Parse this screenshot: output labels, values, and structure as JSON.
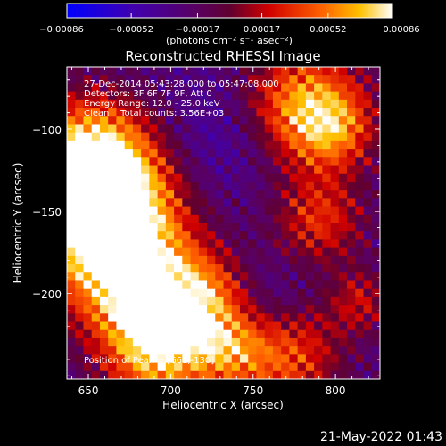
{
  "chart_data": {
    "type": "heatmap",
    "title": "Reconstructed RHESSI Image",
    "xlabel": "Heliocentric X (arcsec)",
    "ylabel": "Heliocentric Y (arcsec)",
    "xlim": [
      637,
      827
    ],
    "ylim": [
      -252,
      -62
    ],
    "x_ticks": [
      650,
      700,
      750,
      800
    ],
    "y_ticks": [
      -100,
      -150,
      -200
    ],
    "x_tick_labels": [
      "650",
      "700",
      "750",
      "800"
    ],
    "y_tick_labels": [
      "−100",
      "−150",
      "−200"
    ],
    "colorbar": {
      "range": [
        -0.00086,
        0.00086
      ],
      "ticks": [
        -0.00086,
        -0.00052,
        -0.00017,
        0.00017,
        0.00052,
        0.00086
      ],
      "tick_labels": [
        "−0.00086",
        "−0.00052",
        "−0.00017",
        "0.00017",
        "0.00052",
        "0.00086"
      ],
      "unit_label": "(photons cm⁻² s⁻¹ asec⁻²)"
    },
    "annotations": [
      "27-Dec-2014 05:43:28.000 to 05:47:08.000",
      "Detectors: 3F 6F 7F 9F, Att 0",
      "Energy Range: 12.0 - 25.0 keV",
      "Clean    Total counts: 3.56E+03"
    ],
    "peak_label": "Position of Peak = [661,-130]",
    "peak_position": [
      661,
      -130
    ],
    "grid": false,
    "colormap": [
      "#0000ff",
      "#4000b0",
      "#500070",
      "#600040",
      "#d00000",
      "#ff6000",
      "#ffc000",
      "#ffffff"
    ]
  },
  "timestamp": "21-May-2022 01:43"
}
